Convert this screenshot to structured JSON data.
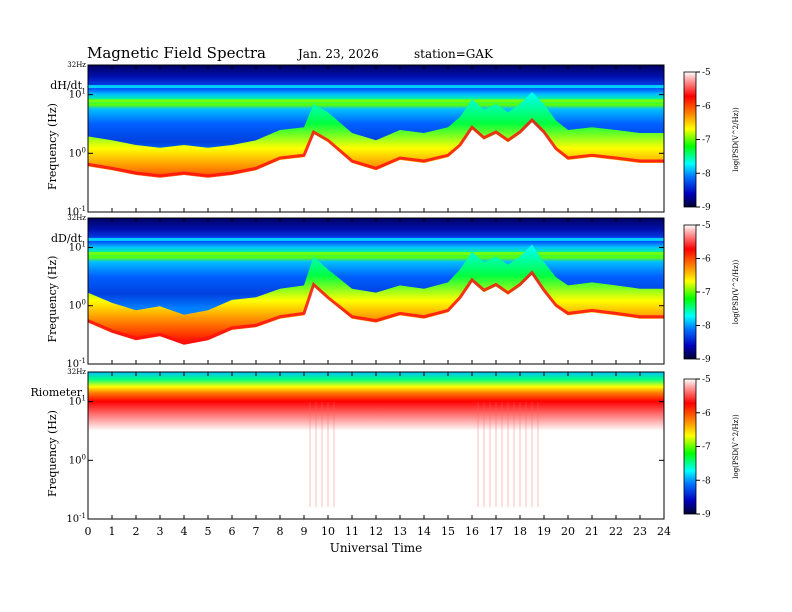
{
  "header": {
    "title": "Magnetic  Field  Spectra",
    "date": "Jan. 23, 2026",
    "station": "station=GAK"
  },
  "chart_data": {
    "type": "heatmap",
    "xlabel": "Universal Time",
    "x_ticks": [
      "0",
      "1",
      "2",
      "3",
      "4",
      "5",
      "6",
      "7",
      "8",
      "9",
      "10",
      "11",
      "12",
      "13",
      "14",
      "15",
      "16",
      "17",
      "18",
      "19",
      "20",
      "21",
      "22",
      "23",
      "24"
    ],
    "xlim": [
      0,
      24
    ],
    "ylabel": "Frequency (Hz)",
    "y_scale": "log",
    "ylim": [
      0.1,
      32
    ],
    "y_top_label": "32Hz",
    "y_tick_labels": [
      "10^1",
      "10^0",
      "10^-1"
    ],
    "colorbar": {
      "label": "log(PSD(V^2/Hz))",
      "range": [
        -9,
        -5
      ],
      "ticks": [
        "-5",
        "-6",
        "-7",
        "-8",
        "-9"
      ],
      "colors": [
        "#ff0000",
        "#ff8a00",
        "#ffff00",
        "#00ff00",
        "#00ffff",
        "#0060ff",
        "#0000cc",
        "#000040"
      ]
    },
    "panels": [
      {
        "name": "dH/dt",
        "lower_edge_freq": [
          [
            0,
            0.7
          ],
          [
            1,
            0.6
          ],
          [
            2,
            0.5
          ],
          [
            3,
            0.45
          ],
          [
            4,
            0.5
          ],
          [
            5,
            0.45
          ],
          [
            6,
            0.5
          ],
          [
            7,
            0.6
          ],
          [
            8,
            0.9
          ],
          [
            9,
            1.0
          ],
          [
            9.4,
            2.5
          ],
          [
            10,
            1.8
          ],
          [
            11,
            0.8
          ],
          [
            12,
            0.6
          ],
          [
            13,
            0.9
          ],
          [
            14,
            0.8
          ],
          [
            15,
            1.0
          ],
          [
            15.5,
            1.5
          ],
          [
            16,
            3.0
          ],
          [
            16.5,
            2.0
          ],
          [
            17,
            2.5
          ],
          [
            17.5,
            1.8
          ],
          [
            18,
            2.5
          ],
          [
            18.5,
            4.0
          ],
          [
            19,
            2.5
          ],
          [
            19.5,
            1.3
          ],
          [
            20,
            0.9
          ],
          [
            21,
            1.0
          ],
          [
            22,
            0.9
          ],
          [
            23,
            0.8
          ],
          [
            24,
            0.8
          ]
        ],
        "bands_hz": [
          8,
          14
        ]
      },
      {
        "name": "dD/dt",
        "lower_edge_freq": [
          [
            0,
            0.6
          ],
          [
            1,
            0.4
          ],
          [
            2,
            0.3
          ],
          [
            3,
            0.35
          ],
          [
            4,
            0.25
          ],
          [
            5,
            0.3
          ],
          [
            6,
            0.45
          ],
          [
            7,
            0.5
          ],
          [
            8,
            0.7
          ],
          [
            9,
            0.8
          ],
          [
            9.4,
            2.5
          ],
          [
            10,
            1.5
          ],
          [
            11,
            0.7
          ],
          [
            12,
            0.6
          ],
          [
            13,
            0.8
          ],
          [
            14,
            0.7
          ],
          [
            15,
            0.9
          ],
          [
            15.5,
            1.5
          ],
          [
            16,
            3.0
          ],
          [
            16.5,
            2.0
          ],
          [
            17,
            2.5
          ],
          [
            17.5,
            1.8
          ],
          [
            18,
            2.5
          ],
          [
            18.5,
            4.0
          ],
          [
            19,
            2.0
          ],
          [
            19.5,
            1.1
          ],
          [
            20,
            0.8
          ],
          [
            21,
            0.9
          ],
          [
            22,
            0.8
          ],
          [
            23,
            0.7
          ],
          [
            24,
            0.7
          ]
        ],
        "bands_hz": [
          8,
          14
        ]
      },
      {
        "name": "Riometer",
        "lower_edge_freq": [],
        "bands_hz": []
      }
    ]
  }
}
